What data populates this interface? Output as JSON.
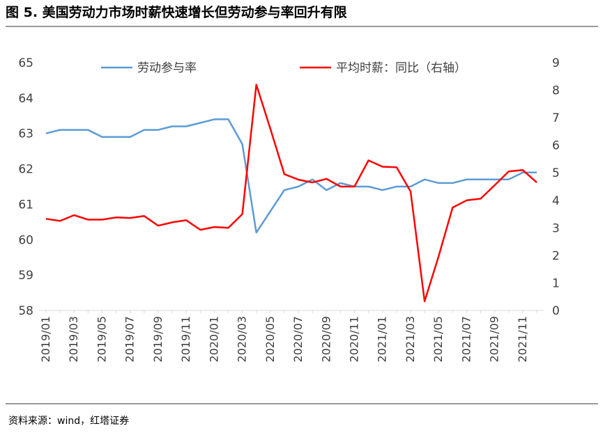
{
  "title": "图 5. 美国劳动力市场时薪快速增长但劳动参与率回升有限",
  "source": "资料来源：wind，红塔证券",
  "chart_data": {
    "type": "line",
    "categories": [
      "2019/01",
      null,
      "2019/03",
      null,
      "2019/05",
      null,
      "2019/07",
      null,
      "2019/09",
      null,
      "2019/11",
      null,
      "2020/01",
      null,
      "2020/03",
      null,
      "2020/05",
      null,
      "2020/07",
      null,
      "2020/09",
      null,
      "2020/11",
      null,
      "2021/01",
      null,
      "2021/03",
      null,
      "2021/05",
      null,
      "2021/07",
      null,
      "2021/09",
      null,
      "2021/11",
      null
    ],
    "series": [
      {
        "name": "劳动参与率",
        "color": "#5b9bd5",
        "axis": "y",
        "values": [
          63.0,
          63.1,
          63.1,
          63.1,
          62.9,
          62.9,
          62.9,
          63.1,
          63.1,
          63.2,
          63.2,
          63.3,
          63.4,
          63.4,
          62.7,
          60.2,
          60.8,
          61.4,
          61.5,
          61.7,
          61.4,
          61.6,
          61.5,
          61.5,
          61.4,
          61.5,
          61.5,
          61.7,
          61.6,
          61.6,
          61.7,
          61.7,
          61.7,
          61.7,
          61.9,
          61.9
        ]
      },
      {
        "name": "平均时薪：同比（右轴）",
        "color": "#ff0000",
        "axis": "y2",
        "values": [
          3.33,
          3.25,
          3.46,
          3.3,
          3.3,
          3.38,
          3.36,
          3.43,
          3.08,
          3.2,
          3.28,
          2.93,
          3.03,
          3.0,
          3.5,
          8.2,
          6.6,
          4.95,
          4.75,
          4.65,
          4.78,
          4.5,
          4.5,
          5.45,
          5.22,
          5.2,
          4.32,
          0.33,
          1.97,
          3.74,
          4.0,
          4.06,
          4.55,
          5.05,
          5.1,
          4.65
        ]
      }
    ],
    "ylim": [
      58,
      65
    ],
    "yticks": [
      58,
      59,
      60,
      61,
      62,
      63,
      64,
      65
    ],
    "y2lim": [
      0,
      9
    ],
    "y2ticks": [
      0,
      1,
      2,
      3,
      4,
      5,
      6,
      7,
      8,
      9
    ],
    "legend": "top",
    "grid": false
  }
}
